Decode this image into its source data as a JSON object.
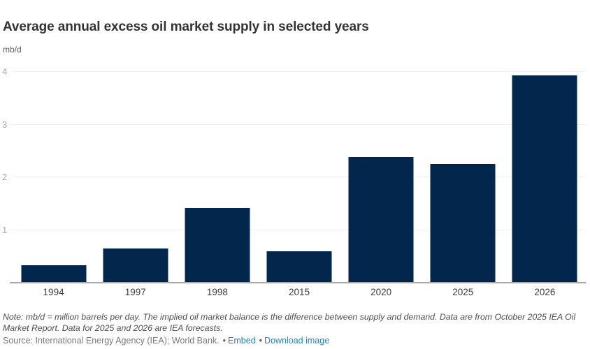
{
  "header": {
    "title": "Average annual excess oil market supply in selected years",
    "unit_label": "mb/d"
  },
  "chart_data": {
    "type": "bar",
    "title": "Average annual excess oil market supply in selected years",
    "ylabel": "mb/d",
    "xlabel": "",
    "categories": [
      "1994",
      "1997",
      "1998",
      "2015",
      "2020",
      "2025",
      "2026"
    ],
    "values": [
      0.33,
      0.65,
      1.42,
      0.6,
      2.38,
      2.25,
      3.93
    ],
    "ylim": [
      0,
      4
    ],
    "yticks": [
      {
        "label": "1",
        "value": 1
      },
      {
        "label": "2",
        "value": 2
      },
      {
        "label": "3",
        "value": 3
      },
      {
        "label": "4",
        "value": 4
      }
    ],
    "grid": "horizontal",
    "legend_position": "none",
    "bar_color": "#03264c"
  },
  "colors": {
    "bar": "#03264c",
    "gridline": "#efefef",
    "axis": "#a9a9a9",
    "link_blue": "#1a87c8",
    "bullet": "#8a4a42"
  },
  "footer": {
    "note": "Note: mb/d = million barrels per day. The implied oil market balance is the difference between supply and demand. Data are from October 2025 IEA Oil Market Report. Data for 2025 and 2026 are IEA forecasts.",
    "source_text": "Source: International Energy Agency (IEA); World Bank.",
    "separator": "•",
    "links": [
      {
        "label": "Embed"
      },
      {
        "label": "Download image"
      }
    ]
  }
}
